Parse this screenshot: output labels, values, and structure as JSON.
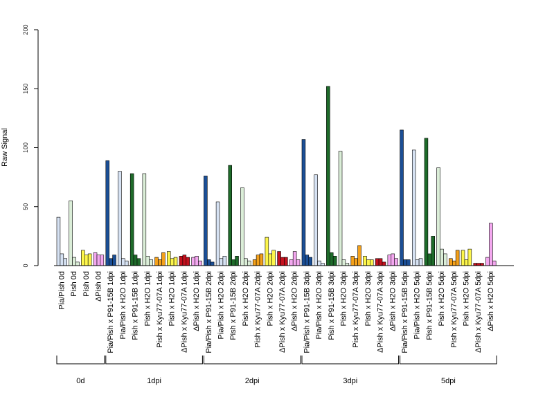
{
  "chart_data": {
    "type": "bar",
    "ylabel": "Raw Signal",
    "ylim": [
      0,
      200
    ],
    "yticks": [
      "0",
      "50",
      "100",
      "150",
      "200"
    ],
    "grid": false,
    "legend": "none",
    "colors": {
      "blue_dark": "#1b4f96",
      "blue_light": "#d6e2f3",
      "green_dark": "#1e6b2a",
      "green_light": "#dbeed8",
      "yellow": "#fdf64b",
      "orange": "#f4a11b",
      "red": "#c4111e",
      "pink": "#f3a7ef"
    },
    "categories": [
      {
        "label": "Pia/Pish 0d",
        "color": "blue_light",
        "values": [
          41,
          10,
          6
        ]
      },
      {
        "label": "Pish 0d",
        "color": "green_light",
        "values": [
          55,
          7,
          3
        ]
      },
      {
        "label": "Pish 0d",
        "color": "yellow",
        "values": [
          13,
          9,
          10
        ]
      },
      {
        "label": "ΔPish 0d",
        "color": "pink",
        "values": [
          11,
          9,
          9
        ]
      },
      {
        "label": "Pia/Pish x P91-15B 1dpi",
        "color": "blue_dark",
        "values": [
          89,
          6,
          9
        ]
      },
      {
        "label": "Pia/Pish x H2O 1dpi",
        "color": "blue_light",
        "values": [
          80,
          6,
          4
        ]
      },
      {
        "label": "Pish x P91-15B 1dpi",
        "color": "green_dark",
        "values": [
          78,
          9,
          6
        ]
      },
      {
        "label": "Pish x H2O 1dpi",
        "color": "green_light",
        "values": [
          78,
          8,
          5
        ]
      },
      {
        "label": "Pish x Kyu77-07A 1dpi",
        "color": "orange",
        "values": [
          7,
          5,
          11
        ]
      },
      {
        "label": "Pish x H2O 1dpi",
        "color": "yellow",
        "values": [
          12,
          6,
          7
        ]
      },
      {
        "label": "ΔPish x Kyu77-07A 1dpi",
        "color": "red",
        "values": [
          8,
          9,
          7
        ]
      },
      {
        "label": "ΔPish x H2O 1dpi",
        "color": "pink",
        "values": [
          7,
          8,
          4
        ]
      },
      {
        "label": "Pia/Pish x P91-15B 2dpi",
        "color": "blue_dark",
        "values": [
          76,
          5,
          3
        ]
      },
      {
        "label": "Pia/Pish x H2O 2dpi",
        "color": "blue_light",
        "values": [
          54,
          6,
          8
        ]
      },
      {
        "label": "Pish x P91-15B 2dpi",
        "color": "green_dark",
        "values": [
          85,
          5,
          8
        ]
      },
      {
        "label": "Pish x H2O 2dpi",
        "color": "green_light",
        "values": [
          66,
          6,
          4
        ]
      },
      {
        "label": "Pish x Kyu77-07A 2dpi",
        "color": "orange",
        "values": [
          5,
          9,
          10
        ]
      },
      {
        "label": "Pish x H2O 2dpi",
        "color": "yellow",
        "values": [
          24,
          10,
          13
        ]
      },
      {
        "label": "ΔPish x Kyu77-07A 2dpi",
        "color": "red",
        "values": [
          12,
          7,
          7
        ]
      },
      {
        "label": "ΔPish x H2O 2dpi",
        "color": "pink",
        "values": [
          5,
          12,
          5
        ]
      },
      {
        "label": "Pia/Pish x P91-15B 3dpi",
        "color": "blue_dark",
        "values": [
          107,
          9,
          7
        ]
      },
      {
        "label": "Pia/Pish x H2O 3dpi",
        "color": "blue_light",
        "values": [
          77,
          4,
          2
        ]
      },
      {
        "label": "Pish x P91-15B 3dpi",
        "color": "green_dark",
        "values": [
          152,
          11,
          8
        ]
      },
      {
        "label": "Pish x H2O 3dpi",
        "color": "green_light",
        "values": [
          97,
          5,
          2
        ]
      },
      {
        "label": "Pish x Kyu77-07A 3dpi",
        "color": "orange",
        "values": [
          8,
          6,
          17
        ]
      },
      {
        "label": "Pish x H2O 3dpi",
        "color": "yellow",
        "values": [
          8,
          5,
          5
        ]
      },
      {
        "label": "ΔPish x Kyu77-07A 3dpi",
        "color": "red",
        "values": [
          6,
          6,
          3
        ]
      },
      {
        "label": "ΔPish x H2O 3dpi",
        "color": "pink",
        "values": [
          9,
          10,
          6
        ]
      },
      {
        "label": "Pia/Pish x P91-15B 5dpi",
        "color": "blue_dark",
        "values": [
          115,
          5,
          5
        ]
      },
      {
        "label": "Pia/Pish x H2O 5dpi",
        "color": "blue_light",
        "values": [
          98,
          5,
          6
        ]
      },
      {
        "label": "Pish x P91-15B 5dpi",
        "color": "green_dark",
        "values": [
          108,
          10,
          25
        ]
      },
      {
        "label": "Pish x H2O 5dpi",
        "color": "green_light",
        "values": [
          83,
          14,
          10
        ]
      },
      {
        "label": "Pish x Kyu77-07A 5dpi",
        "color": "orange",
        "values": [
          6,
          4,
          13
        ]
      },
      {
        "label": "Pish x H2O 5dpi",
        "color": "yellow",
        "values": [
          13,
          5,
          14
        ]
      },
      {
        "label": "ΔPish x Kyu77-07A 5dpi",
        "color": "red",
        "values": [
          2,
          2,
          2
        ]
      },
      {
        "label": "ΔPish x H2O 5dpi",
        "color": "pink",
        "values": [
          7,
          36,
          4
        ]
      }
    ],
    "groups": [
      {
        "label": "0d",
        "start": 0,
        "end": 3
      },
      {
        "label": "1dpi",
        "start": 4,
        "end": 11
      },
      {
        "label": "2dpi",
        "start": 12,
        "end": 19
      },
      {
        "label": "3dpi",
        "start": 20,
        "end": 27
      },
      {
        "label": "5dpi",
        "start": 28,
        "end": 35
      }
    ]
  }
}
